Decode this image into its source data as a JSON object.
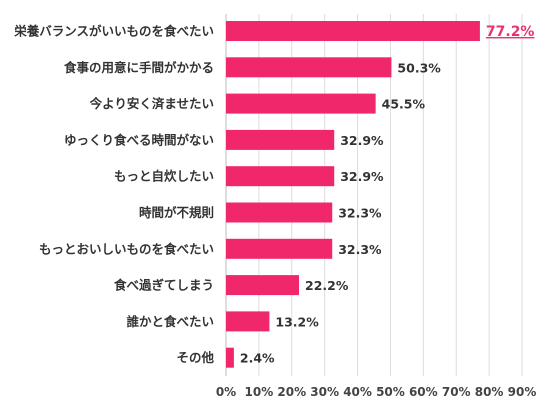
{
  "chart_data": {
    "type": "bar",
    "orientation": "horizontal",
    "categories": [
      "栄養バランスがいいものを食べたい",
      "食事の用意に手間がかかる",
      "今より安く済ませたい",
      "ゆっくり食べる時間がない",
      "もっと自炊したい",
      "時間が不規則",
      "もっとおいしいものを食べたい",
      "食べ過ぎてしまう",
      "誰かと食べたい",
      "その他"
    ],
    "values": [
      77.2,
      50.3,
      45.5,
      32.9,
      32.9,
      32.3,
      32.3,
      22.2,
      13.2,
      2.4
    ],
    "value_labels": [
      "77.2%",
      "50.3%",
      "45.5%",
      "32.9%",
      "32.9%",
      "32.3%",
      "32.3%",
      "22.2%",
      "13.2%",
      "2.4%"
    ],
    "highlight_index": 0,
    "xlim": [
      0,
      90
    ],
    "x_ticks": [
      0,
      10,
      20,
      30,
      40,
      50,
      60,
      70,
      80,
      90
    ],
    "x_tick_labels": [
      "0%",
      "10%",
      "20%",
      "30%",
      "40%",
      "50%",
      "60%",
      "70%",
      "80%",
      "90%"
    ],
    "grid": true,
    "bar_color": "#f0286b",
    "highlight_color": "#e8336b"
  }
}
